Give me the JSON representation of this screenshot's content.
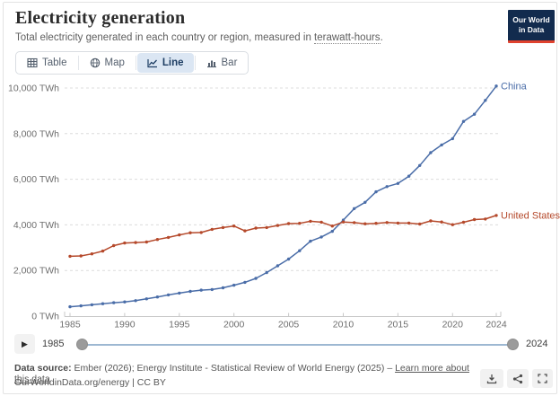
{
  "header": {
    "title": "Electricity generation",
    "subtitle_prefix": "Total electricity generated in each country or region, measured in ",
    "subtitle_term": "terawatt-hours",
    "subtitle_suffix": ".",
    "logo_line1": "Our World",
    "logo_line2": "in Data"
  },
  "tabs": [
    {
      "label": "Table",
      "icon": "table-icon",
      "active": false
    },
    {
      "label": "Map",
      "icon": "globe-icon",
      "active": false
    },
    {
      "label": "Line",
      "icon": "line-chart-icon",
      "active": true
    },
    {
      "label": "Bar",
      "icon": "bar-chart-icon",
      "active": false
    }
  ],
  "chart_data": {
    "type": "line",
    "title": "Electricity generation",
    "unit": "TWh",
    "xlim": [
      1985,
      2024
    ],
    "ylim": [
      0,
      10000
    ],
    "grid": true,
    "legend_position": "end-of-line",
    "x_ticks": [
      1985,
      1990,
      1995,
      2000,
      2005,
      2010,
      2015,
      2020,
      2024
    ],
    "y_ticks": [
      0,
      2000,
      4000,
      6000,
      8000,
      10000
    ],
    "y_tick_labels": [
      "0 TWh",
      "2,000 TWh",
      "4,000 TWh",
      "6,000 TWh",
      "8,000 TWh",
      "10,000 TWh"
    ],
    "x": [
      1985,
      1986,
      1987,
      1988,
      1989,
      1990,
      1991,
      1992,
      1993,
      1994,
      1995,
      1996,
      1997,
      1998,
      1999,
      2000,
      2001,
      2002,
      2003,
      2004,
      2005,
      2006,
      2007,
      2008,
      2009,
      2010,
      2011,
      2012,
      2013,
      2014,
      2015,
      2016,
      2017,
      2018,
      2019,
      2020,
      2021,
      2022,
      2023,
      2024
    ],
    "series": [
      {
        "name": "China",
        "color": "#4a6da8",
        "values": [
          411,
          450,
          497,
          545,
          585,
          621,
          678,
          754,
          839,
          928,
          1007,
          1081,
          1136,
          1167,
          1239,
          1356,
          1481,
          1654,
          1911,
          2203,
          2500,
          2866,
          3282,
          3467,
          3715,
          4207,
          4713,
          4988,
          5447,
          5678,
          5815,
          6133,
          6604,
          7166,
          7503,
          7779,
          8534,
          8849,
          9456,
          10087
        ]
      },
      {
        "name": "United States",
        "color": "#b5492b",
        "values": [
          2621,
          2637,
          2728,
          2852,
          3089,
          3203,
          3226,
          3247,
          3360,
          3448,
          3558,
          3652,
          3664,
          3803,
          3880,
          3950,
          3737,
          3858,
          3883,
          3971,
          4055,
          4065,
          4157,
          4119,
          3950,
          4125,
          4100,
          4048,
          4066,
          4103,
          4078,
          4077,
          4034,
          4174,
          4127,
          4007,
          4116,
          4231,
          4254,
          4413
        ]
      }
    ]
  },
  "timeline": {
    "start_label": "1985",
    "end_label": "2024",
    "play_icon": "play-icon"
  },
  "footer": {
    "source_label": "Data source:",
    "source_text": " Ember (2026); Energy Institute - Statistical Review of World Energy (2025) – ",
    "learn_more_label": "Learn more about this data",
    "credit": "OurWorldinData.org/energy | CC BY",
    "action_icons": [
      "download-icon",
      "share-icon",
      "fullscreen-icon"
    ]
  },
  "colors": {
    "china_line": "#4a6da8",
    "us_line": "#b5492b",
    "active_tab_bg": "#dbe6f3",
    "accent_navy": "#1d3d63",
    "logo_bg": "#122b4e",
    "logo_red": "#e0422e",
    "gridline": "#dcdcdc",
    "axis": "#c8c8c8",
    "tick_text": "#6e6e6e"
  }
}
